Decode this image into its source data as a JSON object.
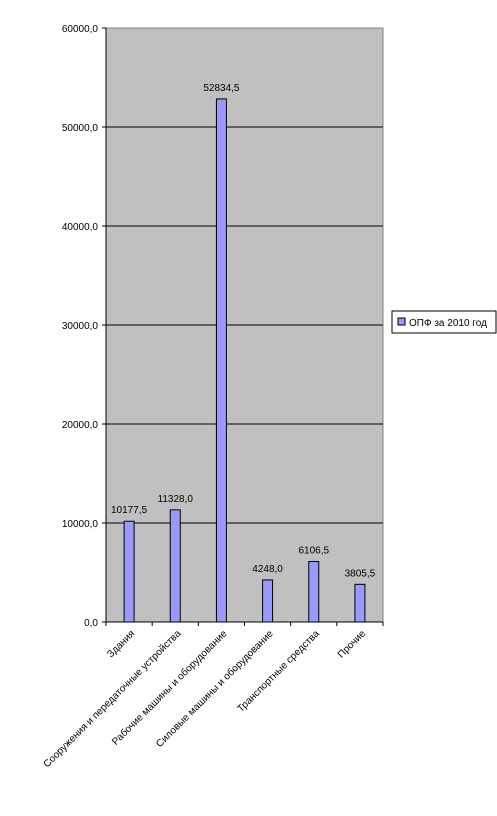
{
  "chart_data": {
    "type": "bar",
    "title": "",
    "xlabel": "",
    "ylabel": "",
    "categories": [
      "Здания",
      "Сооружения и передаточные устройства",
      "Рабочие машины и оборудование",
      "Силовые машины и оборудование",
      "Транспортные средства",
      "Прочие"
    ],
    "series": [
      {
        "name": "ОПФ за 2010 год",
        "values": [
          10177.5,
          11328.0,
          52834.5,
          4248.0,
          6106.5,
          3805.5
        ],
        "color": "#9999ff"
      }
    ],
    "data_labels": [
      "10177,5",
      "11328,0",
      "52834,5",
      "4248,0",
      "6106,5",
      "3805,5"
    ],
    "ylim": [
      0,
      60000
    ],
    "yticks": [
      0,
      10000,
      20000,
      30000,
      40000,
      50000,
      60000
    ],
    "ytick_labels": [
      "0,0",
      "10000,0",
      "20000,0",
      "30000,0",
      "40000,0",
      "50000,0",
      "60000,0"
    ],
    "grid": true,
    "legend_position": "right",
    "plot_background": "#c0c0c0"
  }
}
